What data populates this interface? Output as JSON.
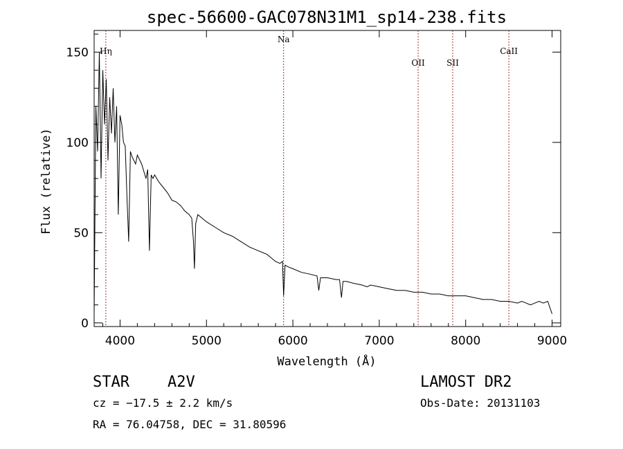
{
  "chart_data": {
    "type": "line",
    "title": "spec-56600-GAC078N31M1_sp14-238.fits",
    "xlabel": "Wavelength (Å)",
    "ylabel": "Flux (relative)",
    "xlim": [
      3700,
      9100
    ],
    "ylim": [
      -2,
      162
    ],
    "xticks": [
      "4000",
      "5000",
      "6000",
      "7000",
      "8000",
      "9000"
    ],
    "yticks": [
      "0",
      "50",
      "100",
      "150"
    ],
    "xtick_values": [
      4000,
      5000,
      6000,
      7000,
      8000,
      9000
    ],
    "ytick_values": [
      0,
      50,
      100,
      150
    ],
    "series": [
      {
        "x": [
          3700,
          3720,
          3740,
          3760,
          3780,
          3800,
          3820,
          3840,
          3860,
          3880,
          3900,
          3920,
          3940,
          3960,
          3980,
          4000,
          4020,
          4040,
          4060,
          4080,
          4100,
          4120,
          4140,
          4160,
          4180,
          4200,
          4250,
          4300,
          4320,
          4340,
          4360,
          4380,
          4400,
          4450,
          4500,
          4550,
          4600,
          4650,
          4700,
          4750,
          4800,
          4830,
          4850,
          4861,
          4875,
          4900,
          4950,
          5000,
          5100,
          5200,
          5300,
          5400,
          5500,
          5600,
          5700,
          5800,
          5850,
          5880,
          5893,
          5910,
          5950,
          6000,
          6100,
          6200,
          6280,
          6300,
          6320,
          6400,
          6500,
          6540,
          6563,
          6580,
          6620,
          6700,
          6800,
          6860,
          6900,
          7000,
          7100,
          7200,
          7300,
          7400,
          7500,
          7600,
          7700,
          7800,
          7900,
          8000,
          8100,
          8200,
          8300,
          8400,
          8500,
          8600,
          8650,
          8700,
          8750,
          8800,
          8850,
          8900,
          8950,
          9000
        ],
        "values": [
          5,
          120,
          95,
          150,
          80,
          140,
          110,
          135,
          90,
          125,
          105,
          130,
          100,
          120,
          60,
          115,
          110,
          100,
          98,
          70,
          45,
          95,
          92,
          90,
          88,
          93,
          88,
          80,
          85,
          40,
          82,
          80,
          82,
          78,
          75,
          72,
          68,
          67,
          65,
          62,
          60,
          58,
          45,
          30,
          55,
          60,
          58,
          56,
          53,
          50,
          48,
          45,
          42,
          40,
          38,
          34,
          33,
          34,
          15,
          32,
          31,
          30,
          28,
          27,
          26,
          18,
          25,
          25,
          24,
          24,
          14,
          23,
          23,
          22,
          21,
          20,
          21,
          20,
          19,
          18,
          18,
          17,
          17,
          16,
          16,
          15,
          15,
          15,
          14,
          13,
          13,
          12,
          12,
          11,
          12,
          11,
          10,
          11,
          12,
          11,
          12,
          5
        ]
      }
    ],
    "annotations": [
      {
        "label": "Hη",
        "x": 3835
      },
      {
        "label": "Na",
        "x": 5893
      },
      {
        "label": "OII",
        "x": 7450
      },
      {
        "label": "SII",
        "x": 7850
      },
      {
        "label": "CaII",
        "x": 8500
      }
    ]
  },
  "info": {
    "class_label": "STAR",
    "subclass_label": "A2V",
    "cz_text": "cz = −17.5 ± 2.2 km/s",
    "radec_text": "RA =  76.04758, DEC =  31.80596",
    "survey_text": "LAMOST DR2",
    "obsdate_text": "Obs-Date: 20131103"
  }
}
